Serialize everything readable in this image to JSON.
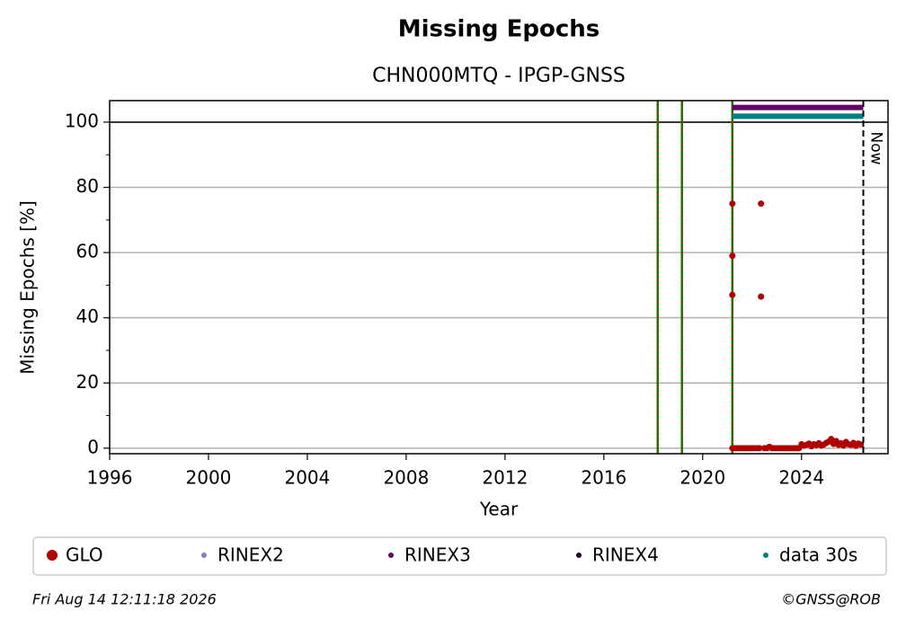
{
  "chart_data": {
    "type": "scatter",
    "title": "Missing Epochs",
    "subtitle": "CHN000MTQ - IPGP-GNSS",
    "xlabel": "Year",
    "ylabel": "Missing Epochs [%]",
    "xlim": [
      1996,
      2027.5
    ],
    "ylim": [
      -1.7,
      106.6
    ],
    "xticks": [
      1996,
      2000,
      2004,
      2008,
      2012,
      2016,
      2020,
      2024
    ],
    "yticks": [
      0,
      20,
      40,
      60,
      80,
      100
    ],
    "yminorticks": [
      10,
      30,
      50,
      70,
      90
    ],
    "grid": true,
    "hline": 100,
    "events": [
      2018.18,
      2019.16,
      2021.2
    ],
    "now": 2026.5,
    "now_label": "Now",
    "series": [
      {
        "name": "GLO",
        "color": "#b00000",
        "kind": "points",
        "x": [
          2021.2,
          2021.2,
          2021.2,
          2021.2,
          2022.36,
          2022.36,
          2021.3,
          2021.4,
          2021.5,
          2021.6,
          2021.7,
          2021.8,
          2021.9,
          2022.0,
          2022.1,
          2022.2,
          2022.3,
          2022.5,
          2022.6,
          2022.7,
          2022.8,
          2022.9,
          2023.0,
          2023.1,
          2023.2,
          2023.3,
          2023.4,
          2023.5,
          2023.6,
          2023.7,
          2023.8,
          2023.9,
          2024.0,
          2024.1,
          2024.2,
          2024.3,
          2024.4,
          2024.5,
          2024.6,
          2024.7,
          2024.8,
          2024.9,
          2025.0,
          2025.1,
          2025.2,
          2025.3,
          2025.4,
          2025.5,
          2025.6,
          2025.7,
          2025.8,
          2025.9,
          2026.0,
          2026.1,
          2026.2,
          2026.3,
          2026.4
        ],
        "values": [
          75,
          59,
          47,
          0,
          75,
          46.5,
          0,
          0,
          0,
          0,
          0,
          0,
          0,
          0,
          0,
          0,
          0,
          0,
          0,
          0.4,
          0,
          0,
          0,
          0,
          0,
          0,
          0,
          0,
          0,
          0,
          0,
          0,
          1.2,
          0.8,
          1.0,
          1.4,
          0.6,
          1.2,
          0.9,
          1.5,
          0.8,
          1.1,
          1.6,
          2.0,
          2.8,
          1.3,
          2.2,
          1.0,
          1.5,
          0.8,
          1.9,
          1.2,
          1.0,
          1.6,
          0.7,
          1.4,
          1.1
        ]
      },
      {
        "name": "RINEX2",
        "color": "#8080c0",
        "kind": "bar",
        "x": [],
        "values": []
      },
      {
        "name": "RINEX3",
        "color": "#660066",
        "kind": "bar",
        "x": [
          2021.2,
          2026.5
        ],
        "values": [
          104.5,
          104.5
        ]
      },
      {
        "name": "RINEX4",
        "color": "#200020",
        "kind": "bar",
        "x": [],
        "values": []
      },
      {
        "name": "data 30s",
        "color": "#008080",
        "kind": "bar",
        "x": [
          2021.2,
          2026.5
        ],
        "values": [
          101.8,
          101.8
        ]
      }
    ],
    "footer_left": "Fri Aug 14 12:11:18 2026",
    "footer_right": "©GNSS@ROB"
  }
}
